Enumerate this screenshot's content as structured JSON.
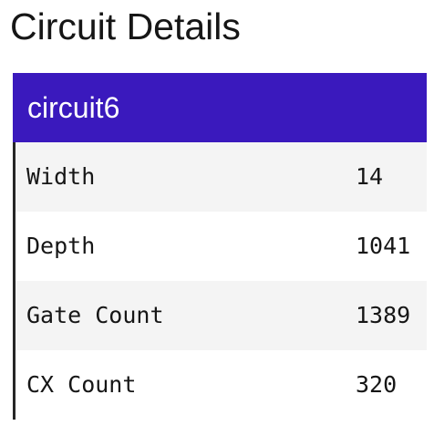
{
  "page": {
    "title": "Circuit Details"
  },
  "circuit": {
    "name": "circuit6",
    "header_color": "#3a19bd",
    "details": [
      {
        "label": "Width",
        "value": "14"
      },
      {
        "label": "Depth",
        "value": "1041"
      },
      {
        "label": "Gate Count",
        "value": "1389"
      },
      {
        "label": "CX Count",
        "value": "320"
      }
    ]
  }
}
